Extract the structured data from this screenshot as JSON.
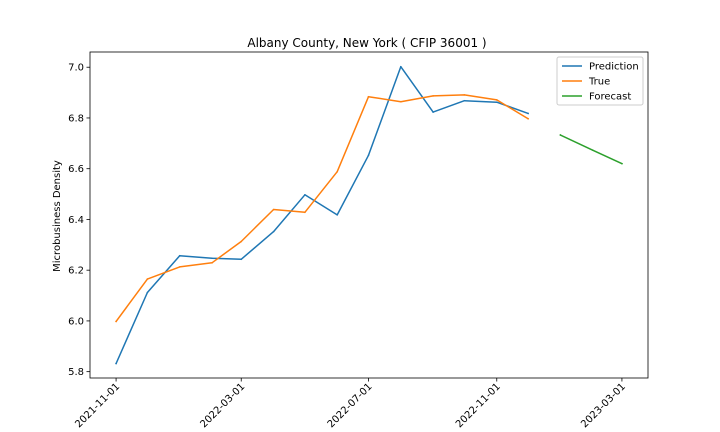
{
  "chart_data": {
    "type": "line",
    "title": "Albany County, New York ( CFIP 36001 )",
    "xlabel": "",
    "ylabel": "Microbusiness Density",
    "x_ticks": [
      "2021-11-01",
      "2022-03-01",
      "2022-07-01",
      "2022-11-01",
      "2023-03-01"
    ],
    "y_ticks": [
      "5.8",
      "6.0",
      "6.2",
      "6.4",
      "6.6",
      "6.8",
      "7.0"
    ],
    "xlim": [
      "2021-10-07",
      "2023-03-26"
    ],
    "ylim": [
      5.775,
      7.06
    ],
    "legend_position": "top-right",
    "series": [
      {
        "name": "Prediction",
        "color": "#1f77b4",
        "points": [
          [
            "2021-11-01",
            5.832
          ],
          [
            "2021-12-01",
            6.112
          ],
          [
            "2022-01-01",
            6.257
          ],
          [
            "2022-02-01",
            6.247
          ],
          [
            "2022-03-01",
            6.243
          ],
          [
            "2022-04-01",
            6.352
          ],
          [
            "2022-05-01",
            6.497
          ],
          [
            "2022-06-01",
            6.418
          ],
          [
            "2022-07-01",
            6.653
          ],
          [
            "2022-08-01",
            7.002
          ],
          [
            "2022-09-01",
            6.823
          ],
          [
            "2022-10-01",
            6.868
          ],
          [
            "2022-11-01",
            6.862
          ],
          [
            "2022-12-01",
            6.818
          ]
        ]
      },
      {
        "name": "True",
        "color": "#ff7f0e",
        "points": [
          [
            "2021-11-01",
            5.998
          ],
          [
            "2021-12-01",
            6.165
          ],
          [
            "2022-01-01",
            6.213
          ],
          [
            "2022-02-01",
            6.229
          ],
          [
            "2022-03-01",
            6.313
          ],
          [
            "2022-04-01",
            6.439
          ],
          [
            "2022-05-01",
            6.428
          ],
          [
            "2022-06-01",
            6.588
          ],
          [
            "2022-07-01",
            6.884
          ],
          [
            "2022-08-01",
            6.864
          ],
          [
            "2022-09-01",
            6.887
          ],
          [
            "2022-10-01",
            6.891
          ],
          [
            "2022-11-01",
            6.871
          ],
          [
            "2022-12-01",
            6.797
          ]
        ]
      },
      {
        "name": "Forecast",
        "color": "#2ca02c",
        "points": [
          [
            "2023-01-01",
            6.733
          ],
          [
            "2023-02-01",
            6.673
          ],
          [
            "2023-03-01",
            6.62
          ]
        ]
      }
    ]
  }
}
